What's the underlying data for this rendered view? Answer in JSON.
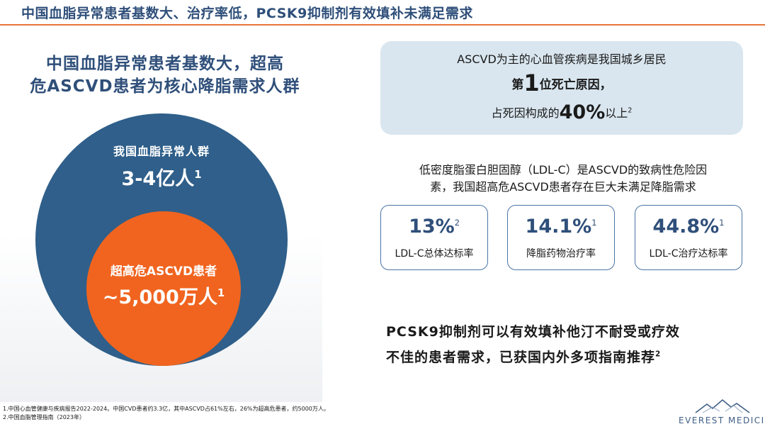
{
  "title": "中国血脂异常患者基数大、治疗率低，PCSK9抑制剂有效填补未满足需求",
  "left": {
    "heading_line1": "中国血脂异常患者基数大，超高",
    "heading_line2": "危ASCVD患者为核心降脂需求人群",
    "outer_label": "我国血脂异常人群",
    "outer_value": "3-4亿人",
    "outer_sup": "1",
    "inner_label": "超高危ASCVD患者",
    "inner_value": "~5,000万人",
    "inner_sup": "1"
  },
  "info": {
    "line1": "ASCVD为主的心血管疾病是我国城乡居民",
    "line2_pre": "第",
    "line2_big": "1",
    "line2_post": "位死亡原因，",
    "line3_pre": "占死因构成的",
    "line3_big": "40%",
    "line3_post": "以上",
    "line3_sup": "2"
  },
  "ldl_text_line1": "低密度脂蛋白胆固醇（LDL-C）是ASCVD的致病性危险因",
  "ldl_text_line2": "素，我国超高危ASCVD患者存在巨大未满足降脂需求",
  "stats": [
    {
      "value": "13%",
      "sup": "2",
      "label": "LDL-C总体达标率"
    },
    {
      "value": "14.1%",
      "sup": "1",
      "label": "降脂药物治疗率"
    },
    {
      "value": "44.8%",
      "sup": "1",
      "label": "LDL-C治疗达标率"
    }
  ],
  "conclusion_line1": "PCSK9抑制剂可以有效填补他汀不耐受或疗效",
  "conclusion_line2": "不佳的患者需求，已获国内外多项指南推荐",
  "conclusion_sup": "2",
  "footnotes": [
    "1.中国心血管健康与疾病报告2022-2024。中国CVD患者约3.3亿，其中ASCVD占61%左右，26%为超高危患者，约5000万人。",
    "2.中国血脂管理指南（2023年）"
  ],
  "logo_text": "EVEREST MEDICINES",
  "colors": {
    "navy": "#2f5f8a",
    "orange": "#f0641f",
    "title_blue": "#2f4f7a",
    "rule_orange": "#e8743b",
    "box_blue": "#d9e6ef"
  }
}
